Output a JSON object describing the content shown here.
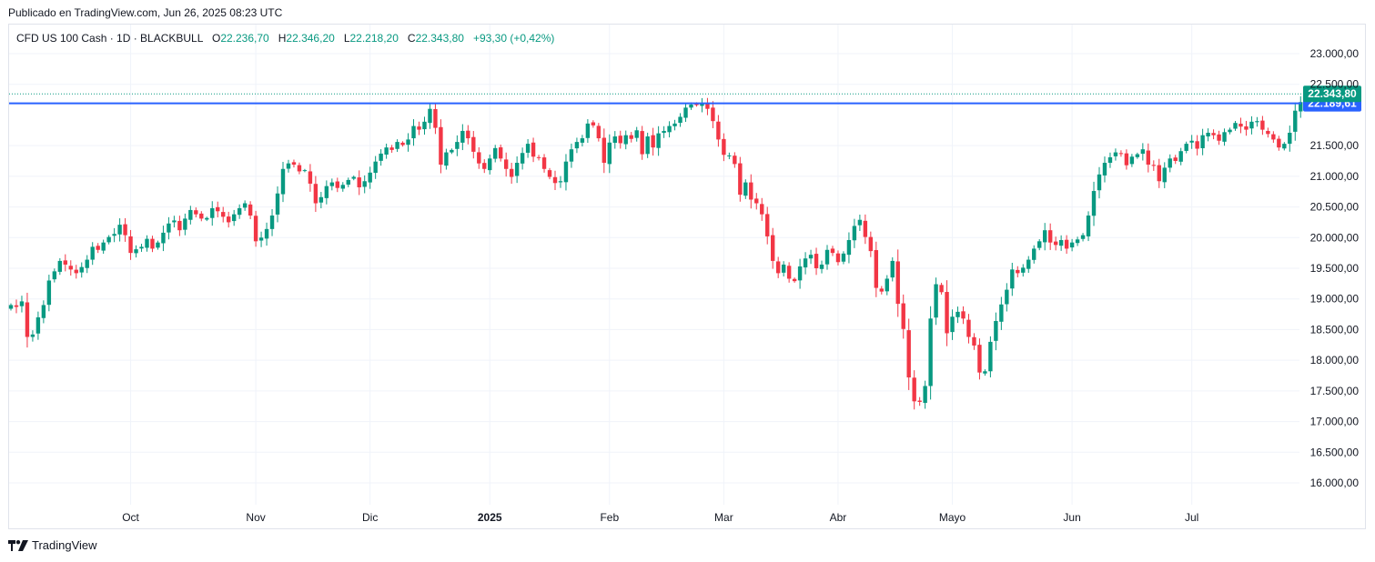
{
  "header": {
    "published": "Publicado en TradingView.com, Jun 26, 2025 08:23 UTC"
  },
  "legend": {
    "symbol": "CFD US 100 Cash · 1D · BLACKBULL",
    "o_label": "O",
    "o": "22.236,70",
    "h_label": "H",
    "h": "22.346,20",
    "l_label": "L",
    "l": "22.218,20",
    "c_label": "C",
    "c": "22.343,80",
    "change": "+93,30 (+0,42%)"
  },
  "footer": {
    "brand": "TradingView",
    "logo_icon": "tradingview-logo-icon"
  },
  "colors": {
    "up": "#089981",
    "down": "#f23645",
    "resistance": "#2962ff",
    "grid": "#f0f3fa",
    "axis_text": "#131722"
  },
  "chart_data": {
    "type": "candlestick",
    "interval": "1D",
    "y_axis": {
      "position": "right",
      "range": [
        15800,
        23300
      ],
      "ticks": [
        {
          "v": 16000,
          "label": "16.000,00"
        },
        {
          "v": 16500,
          "label": "16.500,00"
        },
        {
          "v": 17000,
          "label": "17.000,00"
        },
        {
          "v": 17500,
          "label": "17.500,00"
        },
        {
          "v": 18000,
          "label": "18.000,00"
        },
        {
          "v": 18500,
          "label": "18.500,00"
        },
        {
          "v": 19000,
          "label": "19.000,00"
        },
        {
          "v": 19500,
          "label": "19.500,00"
        },
        {
          "v": 20000,
          "label": "20.000,00"
        },
        {
          "v": 20500,
          "label": "20.500,00"
        },
        {
          "v": 21000,
          "label": "21.000,00"
        },
        {
          "v": 21500,
          "label": "21.500,00"
        },
        {
          "v": 22500,
          "label": "22.500,00"
        },
        {
          "v": 23000,
          "label": "23.000,00"
        }
      ]
    },
    "x_axis": {
      "labels": [
        {
          "label": "Oct",
          "i": 22,
          "bold": false
        },
        {
          "label": "Nov",
          "i": 45,
          "bold": false
        },
        {
          "label": "Dic",
          "i": 66,
          "bold": false
        },
        {
          "label": "2025",
          "i": 88,
          "bold": true
        },
        {
          "label": "Feb",
          "i": 110,
          "bold": false
        },
        {
          "label": "Mar",
          "i": 131,
          "bold": false
        },
        {
          "label": "Abr",
          "i": 152,
          "bold": false
        },
        {
          "label": "Mayo",
          "i": 173,
          "bold": false
        },
        {
          "label": "Jun",
          "i": 195,
          "bold": false
        },
        {
          "label": "Jul",
          "i": 217,
          "bold": false
        }
      ]
    },
    "grid": true,
    "horizontal_line": {
      "value": 22189.61,
      "label": "22.189,61",
      "color": "#2962ff"
    },
    "last_price": {
      "value": 22343.8,
      "label": "22.343,80",
      "color": "#089981"
    },
    "closes": [
      18900,
      18870,
      18960,
      18380,
      18420,
      18700,
      18900,
      19300,
      19450,
      19620,
      19560,
      19480,
      19420,
      19520,
      19640,
      19850,
      19800,
      19920,
      20010,
      20060,
      20210,
      20040,
      19750,
      19810,
      19850,
      19980,
      19820,
      19920,
      20080,
      20230,
      20280,
      20120,
      20310,
      20450,
      20380,
      20310,
      20320,
      20480,
      20430,
      20340,
      20250,
      20380,
      20480,
      20560,
      20360,
      19940,
      20000,
      20140,
      20360,
      20720,
      21120,
      21210,
      21190,
      21080,
      21100,
      20880,
      20560,
      20660,
      20840,
      20900,
      20810,
      20860,
      20940,
      20990,
      20820,
      20920,
      21060,
      21240,
      21370,
      21470,
      21430,
      21560,
      21510,
      21600,
      21820,
      21760,
      21890,
      22100,
      21790,
      21190,
      21390,
      21430,
      21560,
      21740,
      21620,
      21400,
      21210,
      21120,
      21290,
      21460,
      21290,
      21120,
      20990,
      21220,
      21380,
      21530,
      21320,
      21300,
      21120,
      20990,
      20890,
      20920,
      21240,
      21440,
      21560,
      21620,
      21860,
      21830,
      21620,
      21220,
      21550,
      21650,
      21540,
      21670,
      21610,
      21750,
      21360,
      21650,
      21470,
      21700,
      21740,
      21820,
      21860,
      21970,
      22120,
      22170,
      22160,
      22180,
      22100,
      21900,
      21600,
      21350,
      21340,
      21200,
      20700,
      20900,
      20620,
      20560,
      20380,
      20020,
      19620,
      19420,
      19560,
      19330,
      19290,
      19530,
      19660,
      19720,
      19500,
      19560,
      19800,
      19750,
      19600,
      19740,
      19960,
      20190,
      20290,
      20010,
      19780,
      19180,
      19120,
      19330,
      19620,
      18920,
      18510,
      17720,
      17330,
      17320,
      17580,
      18680,
      19240,
      19110,
      18440,
      18710,
      18790,
      18680,
      18380,
      18240,
      17800,
      17820,
      18300,
      18640,
      18910,
      19150,
      19480,
      19420,
      19510,
      19640,
      19820,
      19940,
      20120,
      19920,
      19880,
      19960,
      19820,
      19920,
      19970,
      20040,
      20360,
      20760,
      21030,
      21220,
      21310,
      21390,
      21370,
      21180,
      21320,
      21360,
      21440,
      21190,
      21170,
      20920,
      21140,
      21290,
      21250,
      21410,
      21530,
      21580,
      21450,
      21670,
      21710,
      21670,
      21580,
      21720,
      21760,
      21870,
      21810,
      21760,
      21890,
      21900,
      21760,
      21690,
      21600,
      21470,
      21530,
      21710,
      22070,
      22210,
      22250,
      22343.8
    ],
    "last_bar": {
      "open": 22236.7,
      "high": 22346.2,
      "low": 22218.2,
      "close": 22343.8
    }
  }
}
